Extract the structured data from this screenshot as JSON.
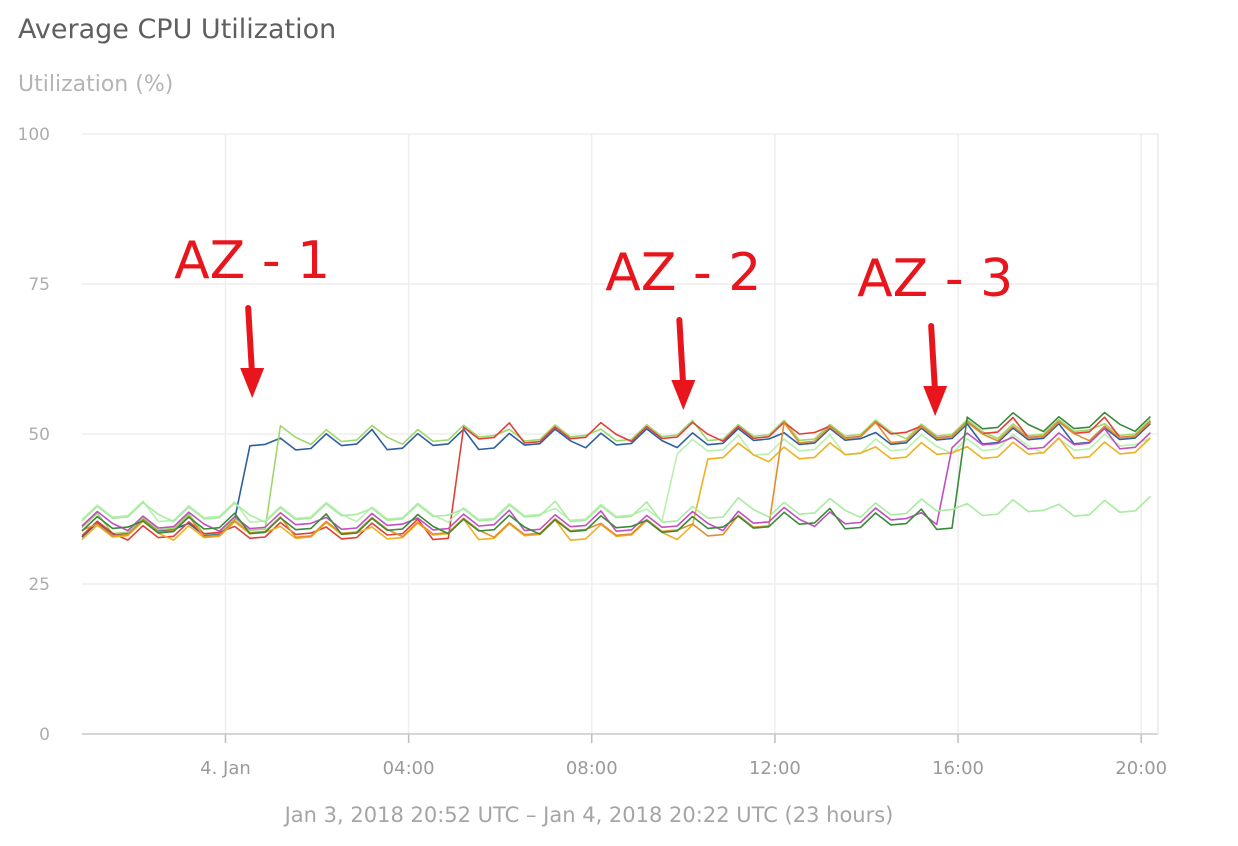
{
  "chart_data": {
    "type": "line",
    "title": "Average CPU Utilization",
    "ylabel": "Utilization (%)",
    "xlabel": "",
    "time_range": "Jan 3, 2018 20:52 UTC – Jan 4, 2018 20:22 UTC (23 hours)",
    "ylim": [
      0,
      100
    ],
    "yticks": [
      0,
      25,
      50,
      75,
      100
    ],
    "xlim": [
      "2018-01-03T20:52",
      "2018-01-04T20:22"
    ],
    "xticks": [
      {
        "time": "2018-01-04T00:00",
        "label": "4. Jan"
      },
      {
        "time": "2018-01-04T04:00",
        "label": "04:00"
      },
      {
        "time": "2018-01-04T08:00",
        "label": "08:00"
      },
      {
        "time": "2018-01-04T12:00",
        "label": "12:00"
      },
      {
        "time": "2018-01-04T16:00",
        "label": "16:00"
      },
      {
        "time": "2018-01-04T20:00",
        "label": "20:00"
      }
    ],
    "grid": true,
    "legend": "none",
    "series": [
      {
        "color": "#2e5f9e",
        "step_time": "2018-01-04T00:20",
        "base": 33.5,
        "high": 47.5
      },
      {
        "color": "#9ed86a",
        "step_time": "2018-01-04T01:00",
        "base": 34.0,
        "high": 48.5
      },
      {
        "color": "#e0403a",
        "step_time": "2018-01-04T05:00",
        "base": 33.0,
        "high": 48.5
      },
      {
        "color": "#b8f0ae",
        "step_time": "2018-01-04T09:40",
        "base": 36.0,
        "high": 46.0
      },
      {
        "color": "#f0b020",
        "step_time": "2018-01-04T10:20",
        "base": 33.0,
        "high": 45.0
      },
      {
        "color": "#e09030",
        "step_time": "2018-01-04T12:00",
        "base": 33.5,
        "high": 48.0
      },
      {
        "color": "#c050c0",
        "step_time": "2018-01-04T15:50",
        "base": 34.5,
        "high": 46.5
      },
      {
        "color": "#3a8a3a",
        "step_time": "2018-01-04T16:00",
        "base": 34.0,
        "high": 49.5
      },
      {
        "color": "#a8eca0",
        "step_time": "none",
        "base": 36.0,
        "high": 36.0
      }
    ],
    "annotations": [
      {
        "text": "AZ - 1",
        "time": "2018-01-04T00:35",
        "value": 56
      },
      {
        "text": "AZ - 2",
        "time": "2018-01-04T10:00",
        "value": 54
      },
      {
        "text": "AZ - 3",
        "time": "2018-01-04T15:30",
        "value": 53
      }
    ],
    "annotation_color": "#e8161c"
  }
}
